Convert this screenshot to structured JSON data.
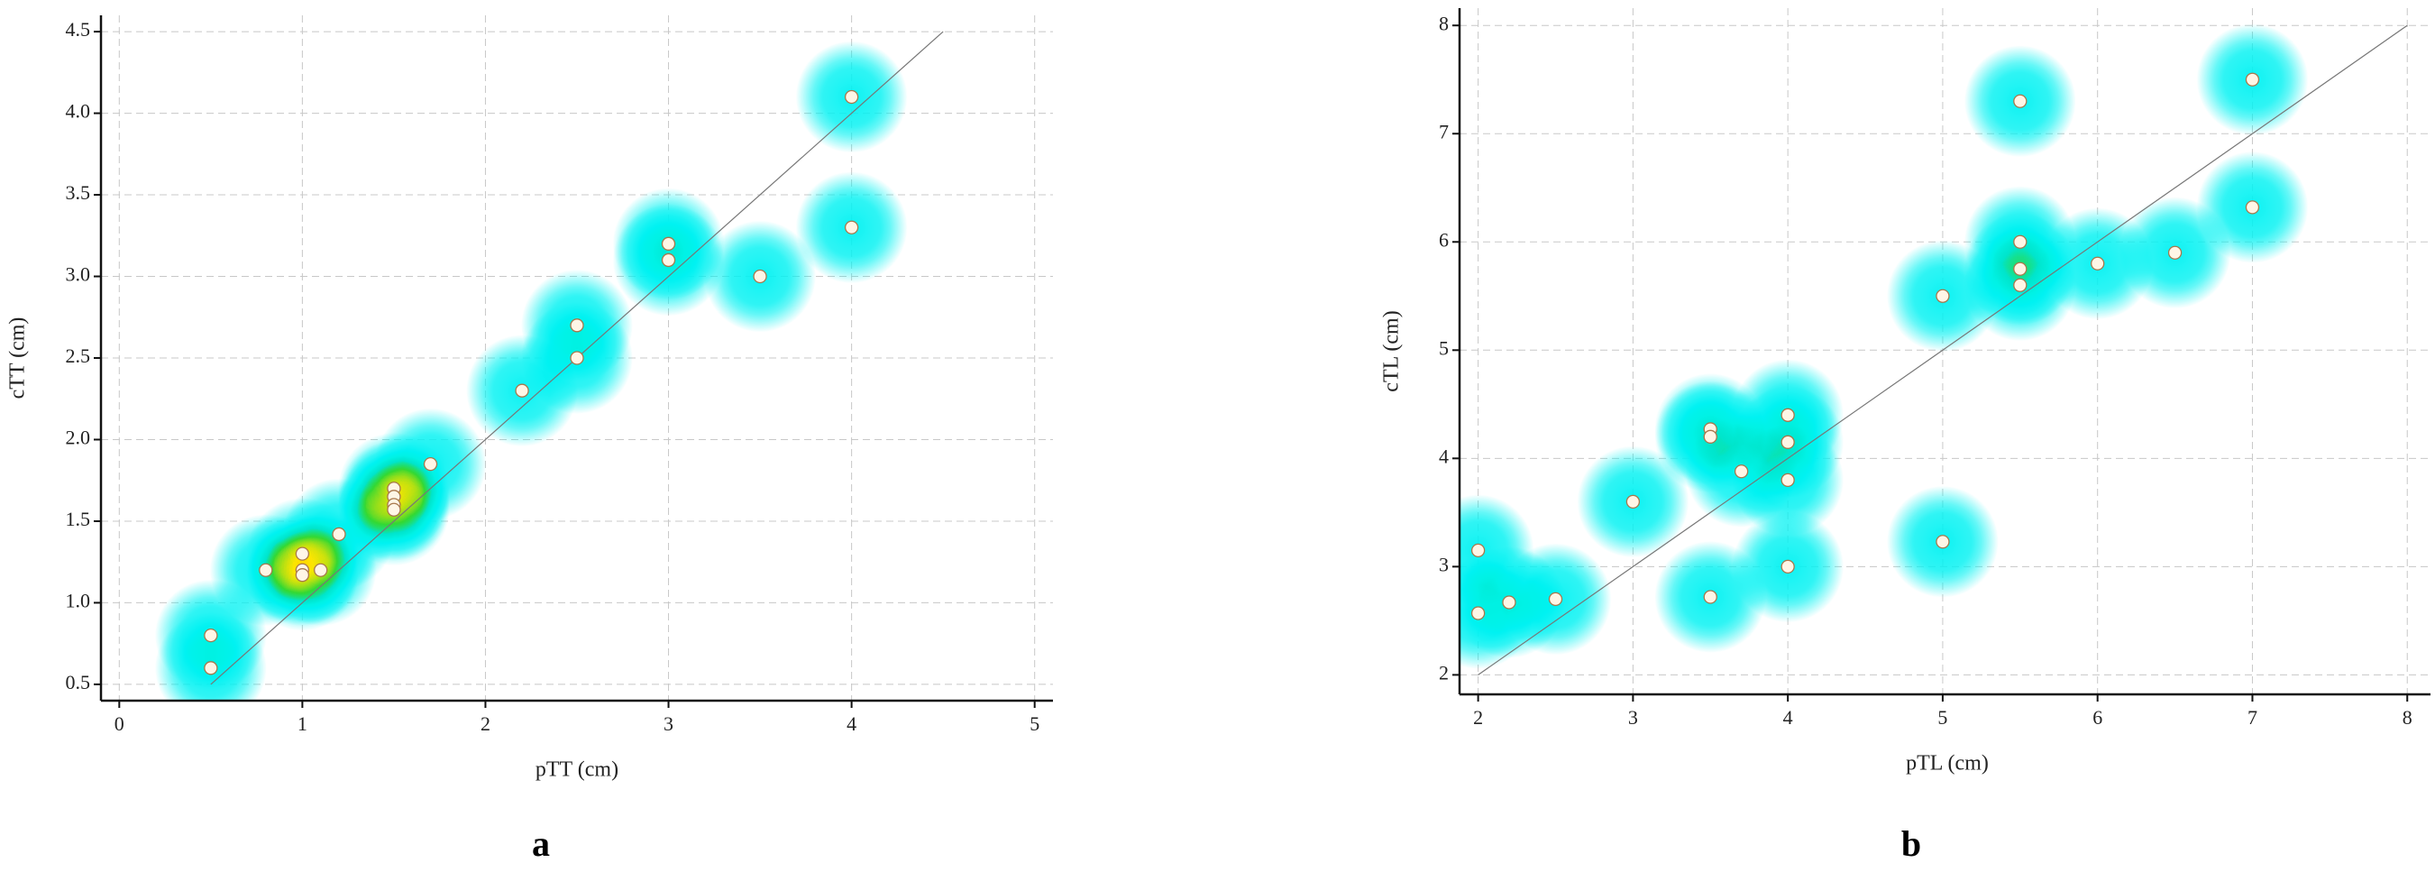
{
  "chart_data": [
    {
      "type": "scatter",
      "xlabel": "pTT (cm)",
      "ylabel": "cTT (cm)",
      "panel_label": "a",
      "color": "#fff6e6",
      "grid": true,
      "xlim": [
        -0.1,
        5.1
      ],
      "ylim": [
        0.4,
        4.6
      ],
      "xticks": [
        0,
        1,
        2,
        3,
        4,
        5
      ],
      "yticks": [
        0.5,
        {
          "value": 1,
          "label": "1.0"
        },
        1.5,
        {
          "value": 2,
          "label": "2.0"
        },
        2.5,
        {
          "value": 3,
          "label": "3.0"
        },
        3.5,
        {
          "value": 4,
          "label": "4.0"
        },
        4.5
      ],
      "reference_line": [
        [
          0.5,
          0.5
        ],
        [
          4.5,
          4.5
        ]
      ],
      "x": [
        0.5,
        0.5,
        0.8,
        1,
        1,
        1,
        1.1,
        1.2,
        1.5,
        1.5,
        1.5,
        1.5,
        1.7,
        2.2,
        2.5,
        2.5,
        3,
        3,
        3.5,
        4,
        4
      ],
      "values": [
        0.8,
        0.6,
        1.2,
        1.3,
        1.2,
        1.17,
        1.2,
        1.42,
        1.7,
        1.65,
        1.6,
        1.57,
        1.85,
        2.3,
        2.7,
        2.5,
        3.2,
        3.1,
        3.0,
        4.1,
        3.3
      ]
    },
    {
      "type": "scatter",
      "xlabel": "pTL (cm)",
      "ylabel": "cTL (cm)",
      "panel_label": "b",
      "color": "#fff6e6",
      "grid": true,
      "xlim": [
        1.88,
        8.15
      ],
      "ylim": [
        1.82,
        8.16
      ],
      "xticks": [
        2,
        3,
        4,
        5,
        6,
        7,
        8
      ],
      "yticks": [
        2,
        3,
        4,
        5,
        6,
        7,
        8
      ],
      "reference_line": [
        [
          2,
          2
        ],
        [
          8,
          8
        ]
      ],
      "x": [
        2,
        2,
        2.2,
        2.5,
        3,
        3.5,
        3.5,
        3.7,
        4,
        4,
        4,
        4,
        3.5,
        5,
        5,
        5.5,
        5.5,
        5.5,
        6,
        6.5,
        7,
        5.5,
        7
      ],
      "values": [
        3.15,
        2.57,
        2.67,
        2.7,
        3.6,
        4.27,
        4.2,
        3.88,
        4.4,
        4.15,
        3.8,
        3.0,
        2.72,
        3.23,
        5.5,
        6.0,
        5.75,
        5.6,
        5.8,
        5.9,
        6.32,
        7.3,
        7.5
      ]
    }
  ]
}
